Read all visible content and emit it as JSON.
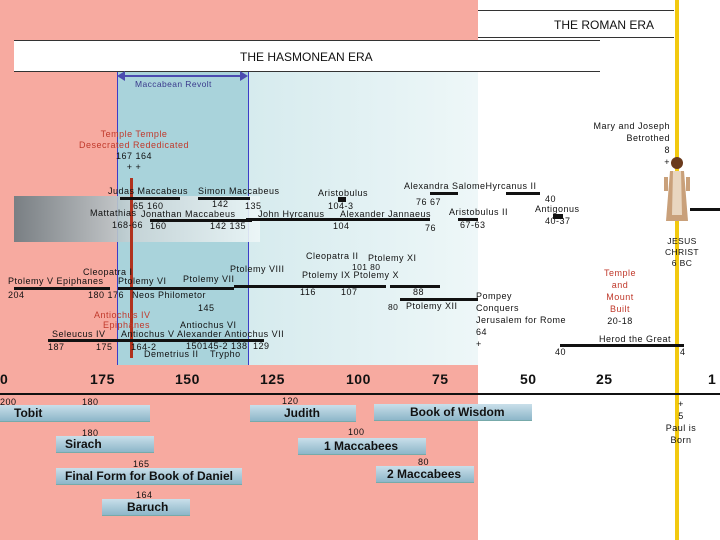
{
  "eras": {
    "roman": "THE ROMAN ERA",
    "hasmonean": "THE HASMONEAN ERA",
    "maccabean_revolt": "Maccabean Revolt"
  },
  "temple_events": {
    "line1": "Temple Temple",
    "line2": "Desecrated Rededicated",
    "line3": "167 164",
    "line4": "+ +"
  },
  "mary_joseph": {
    "line1": "Mary and Joseph",
    "line2": "Betrothed",
    "line3": "8",
    "line4": "+"
  },
  "jesus": {
    "line1": "JESUS",
    "line2": "CHRIST",
    "line3": "6 BC"
  },
  "hasmonean_rulers": {
    "judas": "Judas Maccabeus",
    "simon": "Simon Maccabeus",
    "simon_dates_top": "142",
    "simon_dates_135": "135",
    "judas_dates": "65 160",
    "mattathias": "Mattathias",
    "jonathan": "Jonathan Maccabeus",
    "mattathias_dates": "168-66",
    "jonathan_160": "160",
    "jonathan_dates": "142 135",
    "aristobulus": "Aristobulus",
    "aristobulus_dates": "104-3",
    "john_hyrcanus": "John Hyrcanus",
    "alexander_jannaeus": "Alexander Jannaeus",
    "jh_dates": "104",
    "alexandra_hyrcanus": "Alexandra SalomeHyrcanus II",
    "ash_dates": "76 67",
    "aristobulus_ii": "Aristobulus II",
    "aj_date": "76",
    "ar2_dates": "67-63",
    "antigonus_date": "40",
    "antigonus": "Antigonus",
    "antigonus_dates": "40-37"
  },
  "ptolemies": {
    "cleopatra_ii": "Cleopatra II",
    "ptolemy_xi": "Ptolemy XI",
    "ptolemy_xi_dates": "101 80",
    "ptolemy_viii": "Ptolemy VIII",
    "ptolemy_ix_x": "Ptolemy IX Ptolemy X",
    "cleopatra_i": "Cleopatra I",
    "ptolemy_v": "Ptolemy V Epiphanes",
    "ptolemy_vi": "Ptolemy VI",
    "ptolemy_vii": "Ptolemy VII",
    "ptolemy_v_date": "204",
    "ptolemy_vi_dates": "180 176",
    "neos": "Neos Philometor",
    "pix_dates": "116",
    "pix_107": "107",
    "p88": "88",
    "p80": "80",
    "ptolemy_xii": "Ptolemy XII"
  },
  "seleucids": {
    "antiochus_iv_a": "Antiochus IV",
    "antiochus_iv_b": "Epiphanes",
    "a4_date": "145",
    "antiochus_vi": "Antiochus VI",
    "seleucus_iv": "Seleucus IV",
    "row_names": "Antiochus V Alexander Antiochus VII",
    "s187": "187",
    "s175": "175",
    "s164": "164-2",
    "s150": "150145-2 138",
    "s129": "129",
    "demetrius": "Demetrius II",
    "trypho": "Trypho"
  },
  "pompey": {
    "line1": "Pompey",
    "line2": "Conquers",
    "line3": "Jerusalem for Rome",
    "line4": "64",
    "line5": "+"
  },
  "herod": {
    "label": "Herod the Great",
    "date_40": "40",
    "date_4": "4"
  },
  "temple_mount": {
    "line1": "Temple",
    "line2": "and",
    "line3": "Mount",
    "line4": "Built",
    "line5": "20-18"
  },
  "axis": [
    "0",
    "175",
    "150",
    "125",
    "100",
    "75",
    "50",
    "25",
    "1"
  ],
  "books": {
    "tobit_date": "200",
    "tobit_date2": "180",
    "tobit": "Tobit",
    "judith_date": "120",
    "judith": "Judith",
    "wisdom": "Book of Wisdom",
    "sirach_date": "180",
    "sirach": "Sirach",
    "macc1_date": "100",
    "macc1": "1 Maccabees",
    "daniel_date": "165",
    "daniel": "Final Form for Book of Daniel",
    "macc2_date": "80",
    "macc2": "2 Maccabees",
    "baruch_date": "164",
    "baruch": "Baruch"
  },
  "paul": {
    "line1": "+",
    "line2": "5",
    "line3": "Paul is",
    "line4": "Born"
  },
  "colors": {
    "hellenistic_bg": "#f7aaa0",
    "hasmonean_bg": "#d6ecef",
    "roman_bg": "#ffffff",
    "jesus_line": "#f2c90f",
    "revolt_arrow": "#4b4bb0"
  }
}
